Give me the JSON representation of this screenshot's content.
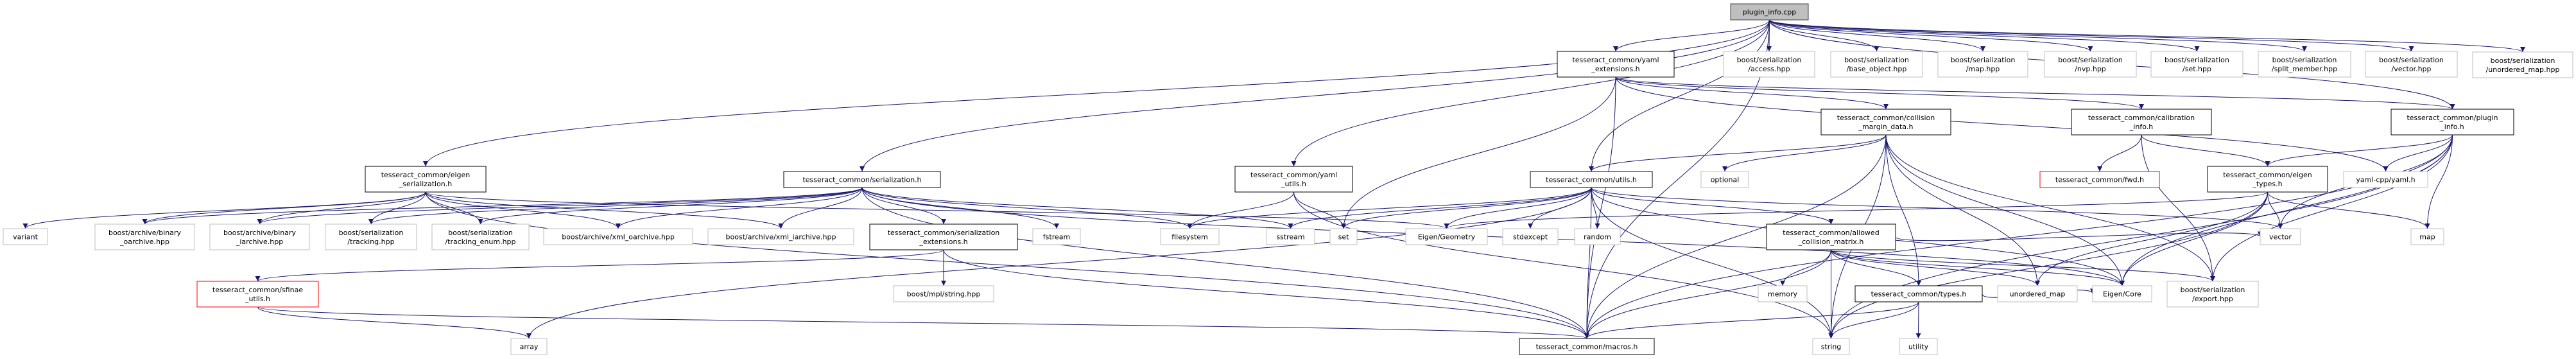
{
  "graph": {
    "colors": {
      "edge": "#191970",
      "root_fill": "#bfbfbf",
      "root_border": "#404040",
      "internal_border": "#000000",
      "external_border": "#bfbfbf",
      "truncated_border": "#ff0000"
    },
    "nodes": [
      {
        "id": "root",
        "kind": "root",
        "lines": [
          "plugin_info.cpp"
        ]
      },
      {
        "id": "yaml_ext",
        "kind": "internal",
        "lines": [
          "tesseract_common/yaml",
          "_extensions.h"
        ]
      },
      {
        "id": "access",
        "kind": "external",
        "lines": [
          "boost/serialization",
          "/access.hpp"
        ]
      },
      {
        "id": "base_object",
        "kind": "external",
        "lines": [
          "boost/serialization",
          "/base_object.hpp"
        ]
      },
      {
        "id": "map_hpp",
        "kind": "external",
        "lines": [
          "boost/serialization",
          "/map.hpp"
        ]
      },
      {
        "id": "nvp",
        "kind": "external",
        "lines": [
          "boost/serialization",
          "/nvp.hpp"
        ]
      },
      {
        "id": "set_hpp",
        "kind": "external",
        "lines": [
          "boost/serialization",
          "/set.hpp"
        ]
      },
      {
        "id": "split_member",
        "kind": "external",
        "lines": [
          "boost/serialization",
          "/split_member.hpp"
        ]
      },
      {
        "id": "vector_hpp",
        "kind": "external",
        "lines": [
          "boost/serialization",
          "/vector.hpp"
        ]
      },
      {
        "id": "unordered_map_hpp",
        "kind": "external",
        "lines": [
          "boost/serialization",
          "/unordered_map.hpp"
        ]
      },
      {
        "id": "collision_margin",
        "kind": "internal",
        "lines": [
          "tesseract_common/collision",
          "_margin_data.h"
        ]
      },
      {
        "id": "calibration_info",
        "kind": "internal",
        "lines": [
          "tesseract_common/calibration",
          "_info.h"
        ]
      },
      {
        "id": "plugin_info_h",
        "kind": "internal",
        "lines": [
          "tesseract_common/plugin",
          "_info.h"
        ]
      },
      {
        "id": "eigen_serialization",
        "kind": "internal",
        "lines": [
          "tesseract_common/eigen",
          "_serialization.h"
        ]
      },
      {
        "id": "serialization_h",
        "kind": "internal",
        "lines": [
          "tesseract_common/serialization.h"
        ]
      },
      {
        "id": "yaml_utils",
        "kind": "internal",
        "lines": [
          "tesseract_common/yaml",
          "_utils.h"
        ]
      },
      {
        "id": "utils_h",
        "kind": "internal",
        "lines": [
          "tesseract_common/utils.h"
        ]
      },
      {
        "id": "optional",
        "kind": "external",
        "lines": [
          "optional"
        ]
      },
      {
        "id": "fwd_h",
        "kind": "truncated",
        "lines": [
          "tesseract_common/fwd.h"
        ]
      },
      {
        "id": "eigen_types",
        "kind": "internal",
        "lines": [
          "tesseract_common/eigen",
          "_types.h"
        ]
      },
      {
        "id": "yaml_cpp",
        "kind": "external",
        "lines": [
          "yaml-cpp/yaml.h"
        ]
      },
      {
        "id": "variant",
        "kind": "external",
        "lines": [
          "variant"
        ]
      },
      {
        "id": "binary_oarchive",
        "kind": "external",
        "lines": [
          "boost/archive/binary",
          "_oarchive.hpp"
        ]
      },
      {
        "id": "binary_iarchive",
        "kind": "external",
        "lines": [
          "boost/archive/binary",
          "_iarchive.hpp"
        ]
      },
      {
        "id": "tracking",
        "kind": "external",
        "lines": [
          "boost/serialization",
          "/tracking.hpp"
        ]
      },
      {
        "id": "tracking_enum",
        "kind": "external",
        "lines": [
          "boost/serialization",
          "/tracking_enum.hpp"
        ]
      },
      {
        "id": "xml_oarchive",
        "kind": "external",
        "lines": [
          "boost/archive/xml_oarchive.hpp"
        ]
      },
      {
        "id": "xml_iarchive",
        "kind": "external",
        "lines": [
          "boost/archive/xml_iarchive.hpp"
        ]
      },
      {
        "id": "serialization_ext",
        "kind": "internal",
        "lines": [
          "tesseract_common/serialization",
          "_extensions.h"
        ]
      },
      {
        "id": "fstream",
        "kind": "external",
        "lines": [
          "fstream"
        ]
      },
      {
        "id": "filesystem",
        "kind": "external",
        "lines": [
          "filesystem"
        ]
      },
      {
        "id": "sstream",
        "kind": "external",
        "lines": [
          "sstream"
        ]
      },
      {
        "id": "set",
        "kind": "external",
        "lines": [
          "set"
        ]
      },
      {
        "id": "eigen_geometry",
        "kind": "external",
        "lines": [
          "Eigen/Geometry"
        ]
      },
      {
        "id": "stdexcept",
        "kind": "external",
        "lines": [
          "stdexcept"
        ]
      },
      {
        "id": "random",
        "kind": "external",
        "lines": [
          "random"
        ]
      },
      {
        "id": "acm",
        "kind": "internal",
        "lines": [
          "tesseract_common/allowed",
          "_collision_matrix.h"
        ]
      },
      {
        "id": "vector",
        "kind": "external",
        "lines": [
          "vector"
        ]
      },
      {
        "id": "map",
        "kind": "external",
        "lines": [
          "map"
        ]
      },
      {
        "id": "sfinae",
        "kind": "truncated",
        "lines": [
          "tesseract_common/sfinae",
          "_utils.h"
        ]
      },
      {
        "id": "mpl_string",
        "kind": "external",
        "lines": [
          "boost/mpl/string.hpp"
        ]
      },
      {
        "id": "memory",
        "kind": "external",
        "lines": [
          "memory"
        ]
      },
      {
        "id": "types_h",
        "kind": "internal",
        "lines": [
          "tesseract_common/types.h"
        ]
      },
      {
        "id": "unordered_map",
        "kind": "external",
        "lines": [
          "unordered_map"
        ]
      },
      {
        "id": "eigen_core",
        "kind": "external",
        "lines": [
          "Eigen/Core"
        ]
      },
      {
        "id": "export_hpp",
        "kind": "external",
        "lines": [
          "boost/serialization",
          "/export.hpp"
        ]
      },
      {
        "id": "array",
        "kind": "external",
        "lines": [
          "array"
        ]
      },
      {
        "id": "macros_h",
        "kind": "internal",
        "lines": [
          "tesseract_common/macros.h"
        ]
      },
      {
        "id": "string",
        "kind": "external",
        "lines": [
          "string"
        ]
      },
      {
        "id": "utility",
        "kind": "external",
        "lines": [
          "utility"
        ]
      }
    ],
    "edges": [
      [
        "root",
        "eigen_serialization"
      ],
      [
        "root",
        "serialization_h"
      ],
      [
        "root",
        "yaml_ext"
      ],
      [
        "root",
        "yaml_utils"
      ],
      [
        "root",
        "utils_h"
      ],
      [
        "root",
        "macros_h"
      ],
      [
        "root",
        "access"
      ],
      [
        "root",
        "base_object"
      ],
      [
        "root",
        "map_hpp"
      ],
      [
        "root",
        "nvp"
      ],
      [
        "root",
        "set_hpp"
      ],
      [
        "root",
        "split_member"
      ],
      [
        "root",
        "vector_hpp"
      ],
      [
        "root",
        "unordered_map_hpp"
      ],
      [
        "root",
        "plugin_info_h"
      ],
      [
        "yaml_ext",
        "set"
      ],
      [
        "yaml_ext",
        "macros_h"
      ],
      [
        "yaml_ext",
        "collision_margin"
      ],
      [
        "yaml_ext",
        "calibration_info"
      ],
      [
        "yaml_ext",
        "plugin_info_h"
      ],
      [
        "yaml_ext",
        "yaml_cpp"
      ],
      [
        "collision_margin",
        "utils_h"
      ],
      [
        "collision_margin",
        "optional"
      ],
      [
        "collision_margin",
        "macros_h"
      ],
      [
        "collision_margin",
        "types_h"
      ],
      [
        "collision_margin",
        "unordered_map"
      ],
      [
        "collision_margin",
        "eigen_core"
      ],
      [
        "collision_margin",
        "export_hpp"
      ],
      [
        "collision_margin",
        "string"
      ],
      [
        "calibration_info",
        "fwd_h"
      ],
      [
        "calibration_info",
        "eigen_types"
      ],
      [
        "calibration_info",
        "export_hpp"
      ],
      [
        "plugin_info_h",
        "eigen_types"
      ],
      [
        "plugin_info_h",
        "yaml_cpp"
      ],
      [
        "plugin_info_h",
        "vector"
      ],
      [
        "plugin_info_h",
        "map"
      ],
      [
        "plugin_info_h",
        "eigen_core"
      ],
      [
        "plugin_info_h",
        "export_hpp"
      ],
      [
        "plugin_info_h",
        "string"
      ],
      [
        "plugin_info_h",
        "macros_h"
      ],
      [
        "eigen_types",
        "eigen_geometry"
      ],
      [
        "eigen_types",
        "vector"
      ],
      [
        "eigen_types",
        "map"
      ],
      [
        "eigen_types",
        "unordered_map"
      ],
      [
        "eigen_types",
        "eigen_core"
      ],
      [
        "eigen_types",
        "string"
      ],
      [
        "eigen_serialization",
        "variant"
      ],
      [
        "eigen_serialization",
        "binary_oarchive"
      ],
      [
        "eigen_serialization",
        "binary_iarchive"
      ],
      [
        "eigen_serialization",
        "tracking"
      ],
      [
        "eigen_serialization",
        "tracking_enum"
      ],
      [
        "eigen_serialization",
        "xml_oarchive"
      ],
      [
        "eigen_serialization",
        "xml_iarchive"
      ],
      [
        "eigen_serialization",
        "eigen_geometry"
      ],
      [
        "eigen_serialization",
        "macros_h"
      ],
      [
        "serialization_h",
        "binary_oarchive"
      ],
      [
        "serialization_h",
        "binary_iarchive"
      ],
      [
        "serialization_h",
        "tracking"
      ],
      [
        "serialization_h",
        "tracking_enum"
      ],
      [
        "serialization_h",
        "xml_oarchive"
      ],
      [
        "serialization_h",
        "xml_iarchive"
      ],
      [
        "serialization_h",
        "serialization_ext"
      ],
      [
        "serialization_h",
        "fstream"
      ],
      [
        "serialization_h",
        "filesystem"
      ],
      [
        "serialization_h",
        "sstream"
      ],
      [
        "serialization_h",
        "macros_h"
      ],
      [
        "serialization_h",
        "eigen_core"
      ],
      [
        "serialization_ext",
        "sfinae"
      ],
      [
        "serialization_ext",
        "mpl_string"
      ],
      [
        "serialization_ext",
        "macros_h"
      ],
      [
        "sfinae",
        "array"
      ],
      [
        "sfinae",
        "macros_h"
      ],
      [
        "yaml_utils",
        "filesystem"
      ],
      [
        "yaml_utils",
        "set"
      ],
      [
        "yaml_utils",
        "string"
      ],
      [
        "utils_h",
        "filesystem"
      ],
      [
        "utils_h",
        "sstream"
      ],
      [
        "utils_h",
        "set"
      ],
      [
        "utils_h",
        "eigen_geometry"
      ],
      [
        "utils_h",
        "stdexcept"
      ],
      [
        "utils_h",
        "random"
      ],
      [
        "utils_h",
        "string"
      ],
      [
        "utils_h",
        "macros_h"
      ],
      [
        "utils_h",
        "acm"
      ],
      [
        "utils_h",
        "vector"
      ],
      [
        "utils_h",
        "eigen_core"
      ],
      [
        "utils_h",
        "array"
      ],
      [
        "acm",
        "memory"
      ],
      [
        "acm",
        "string"
      ],
      [
        "acm",
        "types_h"
      ],
      [
        "acm",
        "unordered_map"
      ],
      [
        "acm",
        "eigen_core"
      ],
      [
        "acm",
        "export_hpp"
      ],
      [
        "acm",
        "macros_h"
      ],
      [
        "acm",
        "vector"
      ],
      [
        "types_h",
        "macros_h"
      ],
      [
        "types_h",
        "string"
      ],
      [
        "types_h",
        "utility"
      ],
      [
        "types_h",
        "eigen_core"
      ]
    ]
  }
}
